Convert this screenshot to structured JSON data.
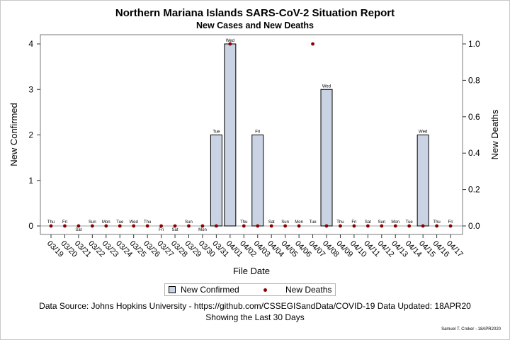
{
  "title": "Northern Mariana Islands SARS-CoV-2 Situation Report",
  "subtitle": "New Cases and New Deaths",
  "footnotes": [
    "Data Source: Johns Hopkins University - https://github.com/CSSEGISandData/COVID-19 Data Updated: 18APR20",
    "Showing the Last 30 Days"
  ],
  "credit": "Samuel T. Croker - 18APR2020",
  "colors": {
    "bar_fill": "#c9d3e3",
    "death_marker": "#8b0000"
  },
  "chart_data": {
    "type": "bar",
    "xlabel": "File Date",
    "ylabel": "New Confirmed",
    "y2label": "New Deaths",
    "ylim": [
      0,
      4
    ],
    "y2lim": [
      0,
      1
    ],
    "yticks": [
      0,
      1,
      2,
      3,
      4
    ],
    "y2ticks": [
      "0.0",
      "0.2",
      "0.4",
      "0.6",
      "0.8",
      "1.0"
    ],
    "categories": [
      "03/19",
      "03/20",
      "03/21",
      "03/22",
      "03/23",
      "03/24",
      "03/25",
      "03/26",
      "03/27",
      "03/28",
      "03/29",
      "03/30",
      "03/31",
      "04/01",
      "04/02",
      "04/03",
      "04/04",
      "04/05",
      "04/06",
      "04/07",
      "04/08",
      "04/09",
      "04/10",
      "04/11",
      "04/12",
      "04/13",
      "04/14",
      "04/15",
      "04/16",
      "04/17"
    ],
    "weekdays": [
      "Thu",
      "Fri",
      "Sat",
      "Sun",
      "Mon",
      "Tue",
      "Wed",
      "Thu",
      "Fri",
      "Sat",
      "Sun",
      "Mon",
      "Tue",
      "Wed",
      "Thu",
      "Fri",
      "Sat",
      "Sun",
      "Mon",
      "Tue",
      "Wed",
      "Thu",
      "Fri",
      "Sat",
      "Sun",
      "Mon",
      "Tue",
      "Wed",
      "Thu",
      "Fri"
    ],
    "weekday_label_below": [
      false,
      false,
      true,
      false,
      false,
      false,
      false,
      false,
      true,
      true,
      false,
      true,
      false,
      false,
      false,
      false,
      false,
      false,
      false,
      false,
      false,
      false,
      false,
      false,
      false,
      false,
      false,
      false,
      false,
      false
    ],
    "series": [
      {
        "name": "New Confirmed",
        "type": "bar",
        "axis": "left",
        "values": [
          0,
          0,
          0,
          0,
          0,
          0,
          0,
          0,
          0,
          0,
          0,
          0,
          2,
          4,
          0,
          2,
          0,
          0,
          0,
          0,
          3,
          0,
          0,
          0,
          0,
          0,
          0,
          2,
          0,
          0
        ]
      },
      {
        "name": "New Deaths",
        "type": "scatter",
        "axis": "right",
        "values": [
          0,
          0,
          0,
          0,
          0,
          0,
          0,
          0,
          0,
          0,
          0,
          0,
          0,
          1,
          0,
          0,
          0,
          0,
          0,
          1,
          0,
          0,
          0,
          0,
          0,
          0,
          0,
          0,
          0,
          0
        ]
      }
    ],
    "legend": "bottom"
  }
}
